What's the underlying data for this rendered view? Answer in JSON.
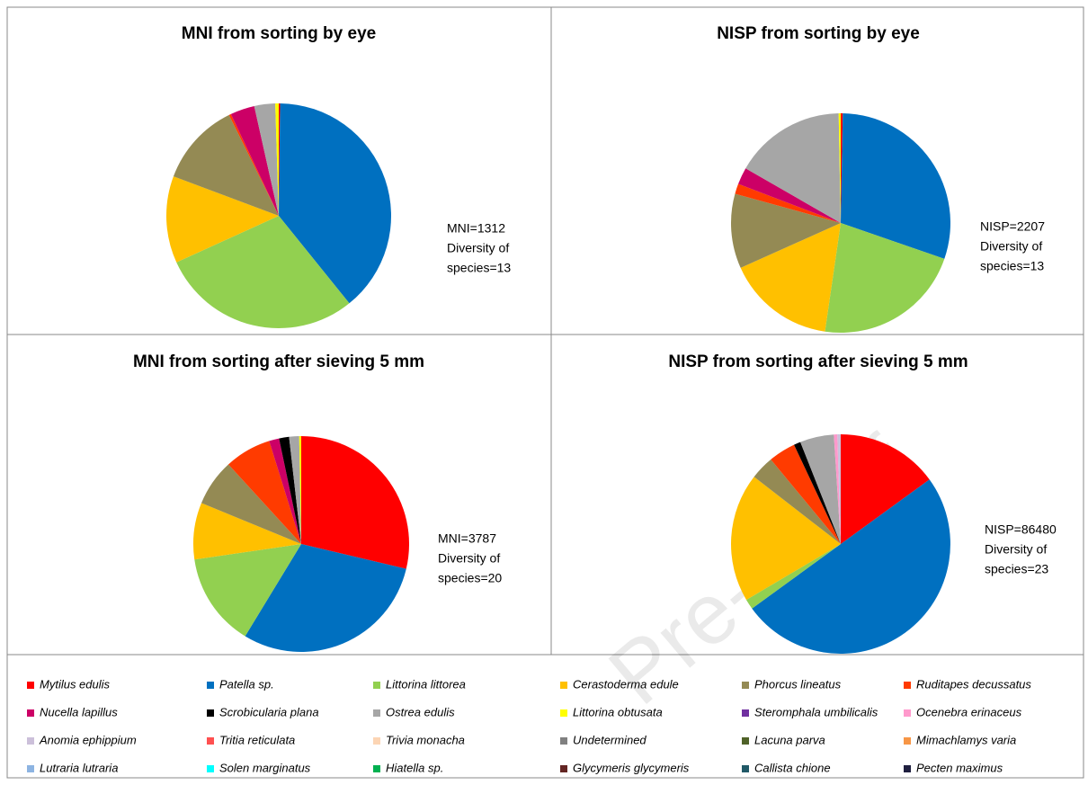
{
  "chart_data": [
    {
      "type": "pie",
      "title": "MNI from sorting by eye",
      "annotation": [
        "MNI=1312",
        "Diversity of",
        "species=13"
      ],
      "values": [
        0.2,
        39,
        29,
        12.5,
        12,
        0.3,
        3.5,
        0,
        3,
        0.5,
        0,
        0,
        0,
        0,
        0,
        0,
        0,
        0,
        0,
        0,
        0,
        0,
        0,
        0
      ]
    },
    {
      "type": "pie",
      "title": "NISP from sorting by eye",
      "annotation": [
        "NISP=2207",
        "Diversity of",
        "species=13"
      ],
      "values": [
        0.3,
        30,
        22,
        16,
        11,
        1.5,
        2.5,
        0,
        16.4,
        0.3,
        0,
        0,
        0,
        0,
        0,
        0,
        0,
        0,
        0,
        0,
        0,
        0,
        0,
        0
      ]
    },
    {
      "type": "pie",
      "title": "MNI from sorting after sieving 5 mm",
      "annotation": [
        "MNI=3787",
        "Diversity of",
        "species=20"
      ],
      "values": [
        28.7,
        30,
        14,
        8.5,
        7,
        7,
        1.5,
        1.5,
        1.5,
        0.3,
        0,
        0,
        0,
        0,
        0,
        0,
        0,
        0,
        0,
        0,
        0,
        0,
        0,
        0
      ]
    },
    {
      "type": "pie",
      "title": "NISP from sorting after sieving 5 mm",
      "annotation": [
        "NISP=86480",
        "Diversity of",
        "species=23"
      ],
      "values": [
        15,
        50,
        1.5,
        19,
        3.5,
        4,
        0,
        1,
        5,
        0,
        0,
        0.5,
        0.5,
        0,
        0,
        0,
        0,
        0,
        0,
        0,
        0,
        0,
        0,
        0
      ]
    }
  ],
  "legend": {
    "categories": [
      "Mytilus edulis",
      "Patella sp.",
      "Littorina littorea",
      "Cerastoderma edule",
      "Phorcus lineatus",
      "Ruditapes decussatus",
      "Nucella lapillus",
      "Scrobicularia plana",
      "Ostrea edulis",
      "Littorina obtusata",
      "Steromphala umbilicalis",
      "Ocenebra erinaceus",
      "Anomia ephippium",
      "Tritia reticulata",
      "Trivia monacha",
      "Undetermined",
      "Lacuna parva",
      "Mimachlamys varia",
      "Lutraria lutraria",
      "Solen marginatus",
      "Hiatella sp.",
      "Glycymeris glycymeris",
      "Callista chione",
      "Pecten maximus"
    ],
    "colors": [
      "#ff0000",
      "#0070c0",
      "#92d050",
      "#ffc000",
      "#948a54",
      "#ff3b00",
      "#cc0066",
      "#000000",
      "#a6a6a6",
      "#ffff00",
      "#7030a0",
      "#ff99cc",
      "#ccc0da",
      "#ff5050",
      "#fcd5b4",
      "#808080",
      "#4f6228",
      "#f79646",
      "#8db4e2",
      "#00ffff",
      "#00b050",
      "#632523",
      "#215967",
      "#1f1f3f"
    ]
  },
  "watermark": "Pre-proof"
}
